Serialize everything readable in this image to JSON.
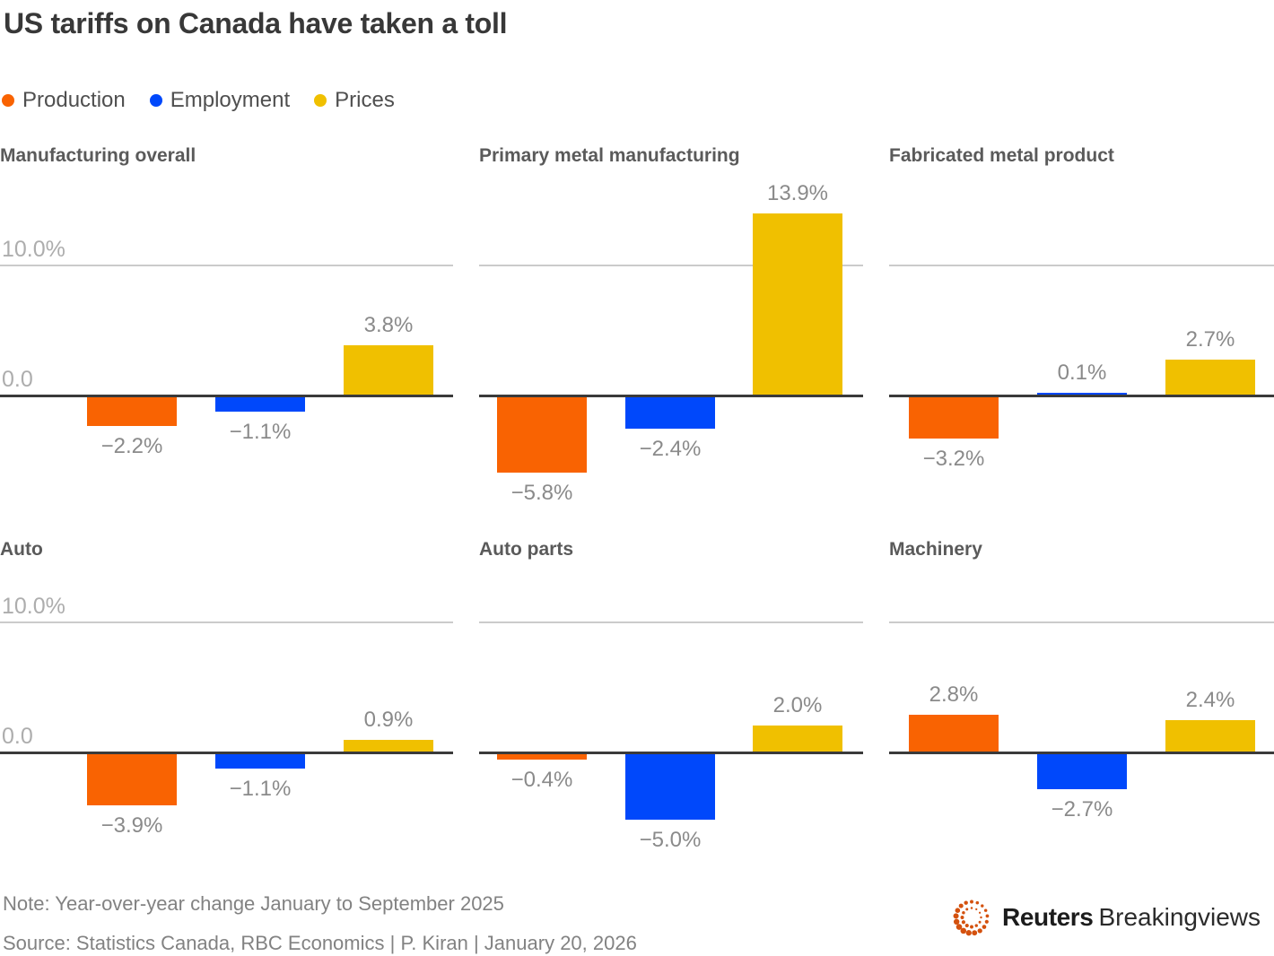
{
  "page_title": "US tariffs on Canada have taken a toll",
  "legend": {
    "items": [
      {
        "label": "Production"
      },
      {
        "label": "Employment"
      },
      {
        "label": "Prices"
      }
    ]
  },
  "axis_labels": {
    "gridline": "10.0%",
    "baseline": "0.0"
  },
  "colors": {
    "production": "#F96302",
    "employment": "#0048FB",
    "prices": "#F0C000",
    "logo_orange": "#D4510E"
  },
  "chart_data": {
    "type": "bar",
    "unit": "percent, year-over-year change",
    "series": [
      "Production",
      "Employment",
      "Prices"
    ],
    "gridline_value": 10.0,
    "baseline_value": 0.0,
    "grid": "single horizontal gridline at 10.0% plus dark zero baseline",
    "legend_position": "top-left",
    "panels": [
      {
        "title": "Manufacturing overall",
        "values": [
          -2.2,
          -1.1,
          3.8
        ],
        "labels": [
          "−2.2%",
          "−1.1%",
          "3.8%"
        ]
      },
      {
        "title": "Primary metal manufacturing",
        "values": [
          -5.8,
          -2.4,
          13.9
        ],
        "labels": [
          "−5.8%",
          "−2.4%",
          "13.9%"
        ]
      },
      {
        "title": "Fabricated metal product",
        "values": [
          -3.2,
          0.1,
          2.7
        ],
        "labels": [
          "−3.2%",
          "0.1%",
          "2.7%"
        ]
      },
      {
        "title": "Auto",
        "values": [
          -3.9,
          -1.1,
          0.9
        ],
        "labels": [
          "−3.9%",
          "−1.1%",
          "0.9%"
        ]
      },
      {
        "title": "Auto parts",
        "values": [
          -0.4,
          -5.0,
          2.0
        ],
        "labels": [
          "−0.4%",
          "−5.0%",
          "2.0%"
        ]
      },
      {
        "title": "Machinery",
        "values": [
          2.8,
          -2.7,
          2.4
        ],
        "labels": [
          "2.8%",
          "−2.7%",
          "2.4%"
        ]
      }
    ]
  },
  "footer": {
    "note": "Note: Year-over-year change January to September 2025",
    "source": "Source: Statistics Canada, RBC Economics | P. Kiran | January 20, 2026"
  },
  "logo": {
    "brand": "Reuters",
    "product": "Breakingviews"
  }
}
